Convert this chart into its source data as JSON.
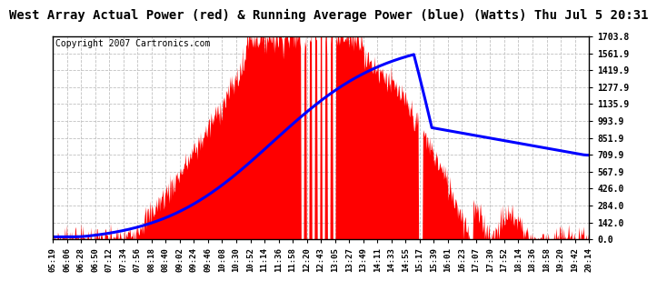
{
  "title": "West Array Actual Power (red) & Running Average Power (blue) (Watts) Thu Jul 5 20:31",
  "copyright": "Copyright 2007 Cartronics.com",
  "yticks": [
    0.0,
    142.0,
    284.0,
    426.0,
    567.9,
    709.9,
    851.9,
    993.9,
    1135.9,
    1277.9,
    1419.9,
    1561.9,
    1703.8
  ],
  "ymax": 1703.8,
  "ymin": 0.0,
  "xtick_labels": [
    "05:19",
    "06:06",
    "06:28",
    "06:50",
    "07:12",
    "07:34",
    "07:56",
    "08:18",
    "08:40",
    "09:02",
    "09:24",
    "09:46",
    "10:08",
    "10:30",
    "10:52",
    "11:14",
    "11:36",
    "11:58",
    "12:20",
    "12:43",
    "13:05",
    "13:27",
    "13:49",
    "14:11",
    "14:33",
    "14:55",
    "15:17",
    "15:39",
    "16:01",
    "16:23",
    "17:07",
    "17:30",
    "17:52",
    "18:14",
    "18:36",
    "18:58",
    "19:20",
    "19:42",
    "20:14"
  ],
  "bg_color": "#ffffff",
  "plot_bg_color": "#ffffff",
  "grid_color": "#c0c0c0",
  "actual_color": "#ff0000",
  "avg_color": "#0000ff",
  "title_fontsize": 10,
  "copyright_fontsize": 7
}
